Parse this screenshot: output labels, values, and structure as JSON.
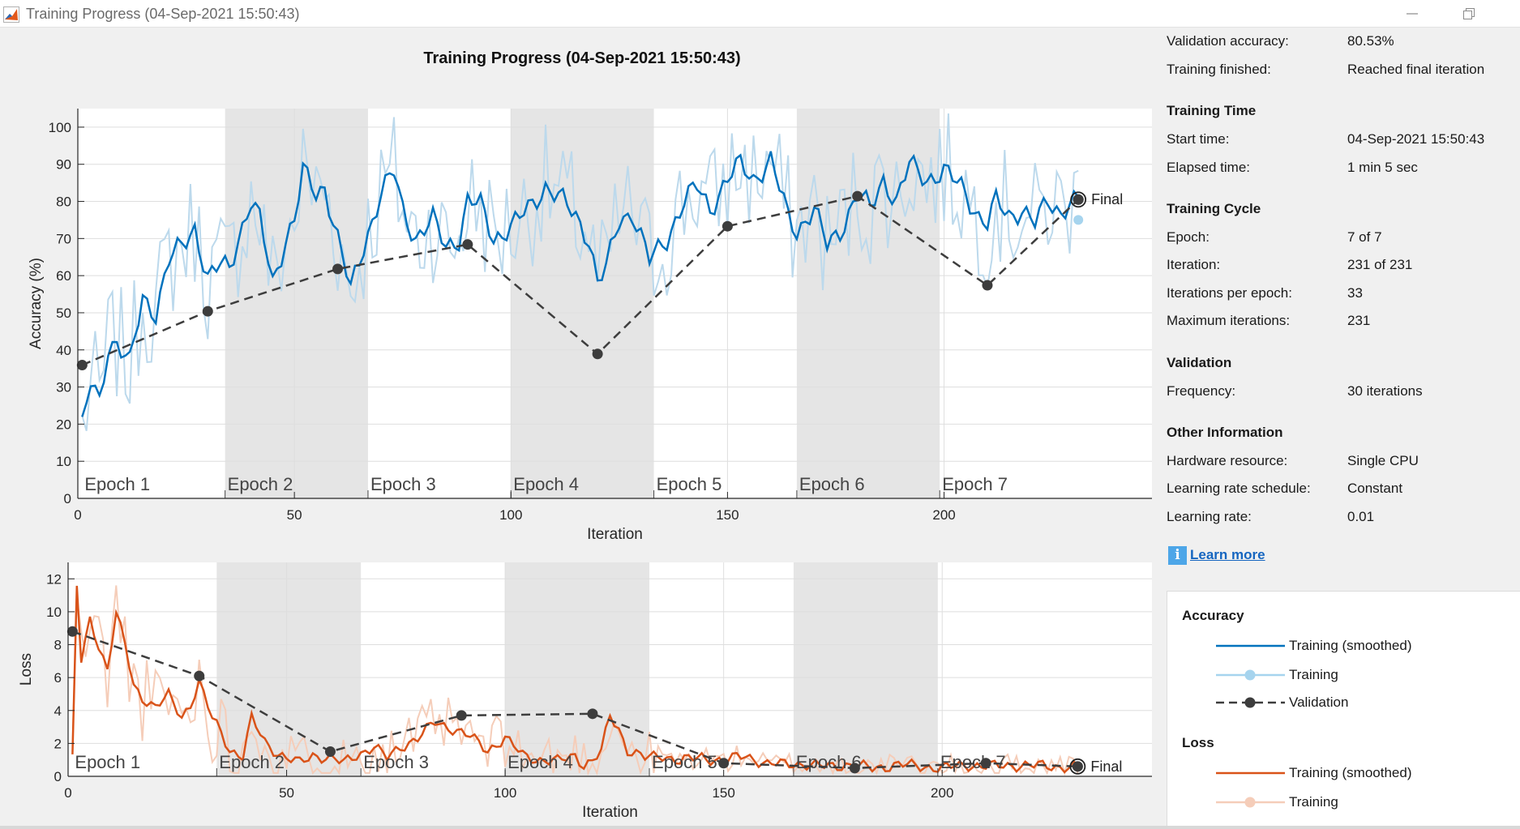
{
  "window": {
    "title": "Training Progress (04-Sep-2021 15:50:43)"
  },
  "chart_title": "Training Progress (04-Sep-2021 15:50:43)",
  "results": {
    "validation_accuracy": {
      "key": "Validation accuracy:",
      "value": "80.53%"
    },
    "training_finished": {
      "key": "Training finished:",
      "value": "Reached final iteration"
    }
  },
  "training_time": {
    "heading": "Training Time",
    "start_time": {
      "key": "Start time:",
      "value": "04-Sep-2021 15:50:43"
    },
    "elapsed_time": {
      "key": "Elapsed time:",
      "value": "1 min 5 sec"
    }
  },
  "training_cycle": {
    "heading": "Training Cycle",
    "epoch": {
      "key": "Epoch:",
      "value": "7 of 7"
    },
    "iteration": {
      "key": "Iteration:",
      "value": "231 of 231"
    },
    "iterations_per_epoch": {
      "key": "Iterations per epoch:",
      "value": "33"
    },
    "maximum_iterations": {
      "key": "Maximum iterations:",
      "value": "231"
    }
  },
  "validation": {
    "heading": "Validation",
    "frequency": {
      "key": "Frequency:",
      "value": "30 iterations"
    }
  },
  "other_information": {
    "heading": "Other Information",
    "hardware_resource": {
      "key": "Hardware resource:",
      "value": "Single CPU"
    },
    "lr_schedule": {
      "key": "Learning rate schedule:",
      "value": "Constant"
    },
    "learning_rate": {
      "key": "Learning rate:",
      "value": "0.01"
    }
  },
  "learn_more": "Learn more",
  "legend": {
    "accuracy_heading": "Accuracy",
    "loss_heading": "Loss",
    "items": {
      "acc_smoothed": "Training (smoothed)",
      "acc_training": "Training",
      "acc_validation": "Validation",
      "loss_smoothed": "Training (smoothed)",
      "loss_training": "Training"
    }
  },
  "colors": {
    "accuracy_smoothed": "#0072bd",
    "accuracy_raw": "#bcd9ec",
    "accuracy_validation_marker": "#a6d4ee",
    "loss_smoothed": "#d95319",
    "loss_raw": "#f5cdb9",
    "validation": "#3d3d3d",
    "epoch_band": "#e5e5e5"
  },
  "chart_data": [
    {
      "type": "line",
      "name": "accuracy-chart",
      "xlabel": "Iteration",
      "ylabel": "Accuracy (%)",
      "xlim": [
        0,
        248
      ],
      "ylim": [
        0,
        105
      ],
      "xticks": [
        0,
        50,
        100,
        150,
        200
      ],
      "yticks": [
        0,
        10,
        20,
        30,
        40,
        50,
        60,
        70,
        80,
        90,
        100
      ],
      "grid": true,
      "epoch_labels": [
        "Epoch 1",
        "Epoch 2",
        "Epoch 3",
        "Epoch 4",
        "Epoch 5",
        "Epoch 6",
        "Epoch 7"
      ],
      "epoch_starts": [
        1,
        34,
        67,
        100,
        133,
        166,
        199
      ],
      "validation": {
        "x": [
          1,
          30,
          60,
          90,
          120,
          150,
          180,
          210,
          231
        ],
        "y": [
          35.9,
          50.4,
          61.8,
          68.4,
          38.9,
          73.3,
          81.4,
          57.4,
          80.5
        ]
      },
      "final_label": "Final",
      "final_point": {
        "x": 231,
        "y": 80.5
      },
      "final_training_point": {
        "x": 231,
        "y": 75
      },
      "smoothed_anchors": {
        "x": [
          1,
          3,
          5,
          7,
          9,
          12,
          15,
          18,
          21,
          24,
          27,
          30,
          33,
          35,
          37,
          40,
          42,
          45,
          48,
          50,
          52,
          55,
          57,
          60,
          63,
          66,
          70,
          73,
          75,
          78,
          82,
          85,
          88,
          90,
          93,
          96,
          100,
          104,
          108,
          112,
          115,
          118,
          120,
          122,
          125,
          128,
          132,
          136,
          140,
          143,
          146,
          150,
          153,
          156,
          160,
          164,
          166,
          170,
          173,
          176,
          180,
          183,
          186,
          189,
          192,
          196,
          200,
          204,
          208,
          210,
          212,
          215,
          218,
          221,
          224,
          227,
          229,
          231
        ],
        "y": [
          19,
          31,
          26,
          41,
          42,
          36,
          54,
          50,
          64,
          68,
          73,
          59,
          63,
          62,
          70,
          80,
          75,
          58,
          70,
          75,
          88,
          82,
          84,
          70,
          56,
          68,
          82,
          88,
          78,
          70,
          75,
          68,
          70,
          80,
          79,
          70,
          73,
          78,
          84,
          80,
          76,
          70,
          58,
          62,
          75,
          77,
          64,
          70,
          80,
          84,
          78,
          86,
          90,
          86,
          91,
          76,
          72,
          78,
          68,
          72,
          82,
          78,
          86,
          80,
          90,
          86,
          88,
          84,
          76,
          74,
          80,
          76,
          78,
          74,
          80,
          77,
          80,
          80
        ]
      }
    },
    {
      "type": "line",
      "name": "loss-chart",
      "xlabel": "Iteration",
      "ylabel": "Loss",
      "xlim": [
        0,
        248
      ],
      "ylim": [
        0,
        13
      ],
      "xticks": [
        0,
        50,
        100,
        150,
        200
      ],
      "yticks": [
        0,
        2,
        4,
        6,
        8,
        10,
        12
      ],
      "grid": true,
      "epoch_labels": [
        "Epoch 1",
        "Epoch 2",
        "Epoch 3",
        "Epoch 4",
        "Epoch 5",
        "Epoch 6",
        "Epoch 7"
      ],
      "epoch_starts": [
        1,
        34,
        67,
        100,
        133,
        166,
        199
      ],
      "validation": {
        "x": [
          1,
          30,
          60,
          90,
          120,
          150,
          180,
          210,
          231
        ],
        "y": [
          8.8,
          6.1,
          1.5,
          3.7,
          3.8,
          0.8,
          0.5,
          0.8,
          0.6
        ]
      },
      "final_label": "Final",
      "final_point": {
        "x": 231,
        "y": 0.6
      },
      "smoothed_anchors": {
        "x": [
          1,
          2,
          3,
          5,
          7,
          9,
          11,
          13,
          15,
          17,
          20,
          23,
          26,
          28,
          30,
          33,
          35,
          37,
          40,
          42,
          45,
          48,
          50,
          53,
          56,
          60,
          63,
          66,
          70,
          73,
          76,
          80,
          84,
          88,
          92,
          96,
          100,
          104,
          108,
          112,
          116,
          118,
          120,
          122,
          124,
          126,
          128,
          132,
          136,
          140,
          145,
          150,
          155,
          160,
          166,
          172,
          178,
          184,
          190,
          196,
          200,
          206,
          212,
          218,
          224,
          231
        ],
        "y": [
          1,
          11.5,
          7,
          9.5,
          8,
          6.5,
          9.9,
          8,
          5.5,
          4.8,
          4.2,
          4.9,
          3.6,
          4.4,
          5.7,
          3.5,
          2.7,
          1.6,
          1.2,
          3.5,
          2.1,
          1.4,
          1.1,
          0.8,
          1.3,
          1.1,
          0.8,
          1.3,
          1.8,
          1.1,
          1.8,
          2.3,
          3.3,
          2.9,
          2.4,
          1.6,
          2.3,
          1.3,
          1.0,
          0.9,
          1.3,
          0.7,
          0.9,
          1.5,
          3.7,
          2.9,
          1.6,
          1.1,
          1.3,
          0.9,
          1.2,
          0.9,
          1.3,
          0.7,
          0.8,
          0.6,
          0.7,
          0.5,
          0.7,
          0.6,
          0.5,
          0.7,
          0.6,
          0.7,
          0.6,
          0.6
        ]
      }
    }
  ]
}
